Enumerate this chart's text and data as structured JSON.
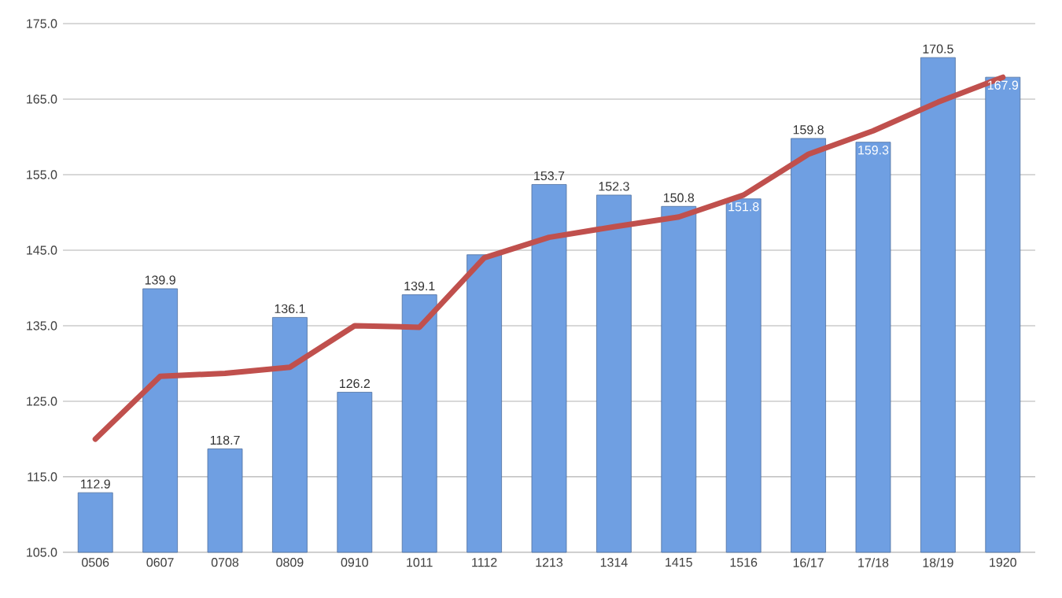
{
  "chart_data": {
    "type": "bar",
    "categories": [
      "0506",
      "0607",
      "0708",
      "0809",
      "0910",
      "1011",
      "1112",
      "1213",
      "1314",
      "1415",
      "1516",
      "16/17",
      "17/18",
      "18/19",
      "1920"
    ],
    "ylim": [
      105,
      175
    ],
    "yticks": [
      {
        "value": 105,
        "label": "105.0"
      },
      {
        "value": 115,
        "label": "115.0"
      },
      {
        "value": 125,
        "label": "125.0"
      },
      {
        "value": 135,
        "label": "135.0"
      },
      {
        "value": 145,
        "label": "145.0"
      },
      {
        "value": 155,
        "label": "155.0"
      },
      {
        "value": 165,
        "label": "165.0"
      },
      {
        "value": 175,
        "label": "175.0"
      }
    ],
    "grid": "y",
    "series": [
      {
        "color": "#6f9fe2",
        "values": [
          112.9,
          139.9,
          118.7,
          136.1,
          126.2,
          139.1,
          144.4,
          153.7,
          152.3,
          150.8,
          151.8,
          159.8,
          159.3,
          170.5,
          167.9
        ],
        "value_labels": [
          "112.9",
          "139.9",
          "118.7",
          "136.1",
          "126.2",
          "139.1",
          null,
          "153.7",
          "152.3",
          "150.8",
          "151.8",
          "159.8",
          "159.3",
          "170.5",
          "167.9"
        ]
      },
      {
        "type": "line",
        "color": "#c0504d",
        "values": [
          120.0,
          128.3,
          128.7,
          129.5,
          135.0,
          134.8,
          144.0,
          146.7,
          148.1,
          149.4,
          152.3,
          157.7,
          160.8,
          164.6,
          167.9
        ]
      }
    ]
  }
}
